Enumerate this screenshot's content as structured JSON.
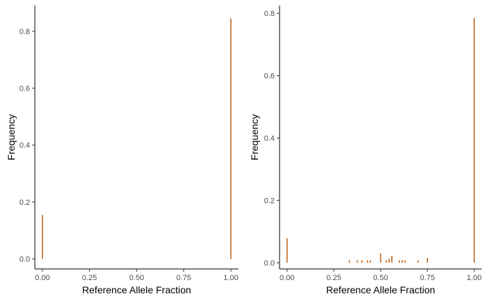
{
  "chart_data": [
    {
      "type": "bar",
      "xlabel": "Reference Allele Fraction",
      "ylabel": "Frequency",
      "xlim": [
        -0.04,
        1.04
      ],
      "ylim": [
        -0.035,
        0.89
      ],
      "x_ticks": [
        0.0,
        0.25,
        0.5,
        0.75,
        1.0
      ],
      "x_tick_labels": [
        "0.00",
        "0.25",
        "0.50",
        "0.75",
        "1.00"
      ],
      "y_ticks": [
        0.0,
        0.2,
        0.4,
        0.6,
        0.8
      ],
      "y_tick_labels": [
        "0.0",
        "0.2",
        "0.4",
        "0.6",
        "0.8"
      ],
      "bar_color": "#c0671f",
      "grid": false,
      "bars": [
        {
          "x": 0.0,
          "y": 0.155
        },
        {
          "x": 1.0,
          "y": 0.845
        }
      ]
    },
    {
      "type": "bar",
      "xlabel": "Reference Allele Fraction",
      "ylabel": "Frequency",
      "xlim": [
        -0.04,
        1.04
      ],
      "ylim": [
        -0.02,
        0.825
      ],
      "x_ticks": [
        0.0,
        0.25,
        0.5,
        0.75,
        1.0
      ],
      "x_tick_labels": [
        "0.00",
        "0.25",
        "0.50",
        "0.75",
        "1.00"
      ],
      "y_ticks": [
        0.0,
        0.2,
        0.4,
        0.6,
        0.8
      ],
      "y_tick_labels": [
        "0.0",
        "0.2",
        "0.4",
        "0.6",
        "0.8"
      ],
      "bar_color": "#c0671f",
      "grid": false,
      "bars": [
        {
          "x": 0.0,
          "y": 0.078
        },
        {
          "x": 0.333,
          "y": 0.008
        },
        {
          "x": 0.375,
          "y": 0.008
        },
        {
          "x": 0.4,
          "y": 0.008
        },
        {
          "x": 0.43,
          "y": 0.008
        },
        {
          "x": 0.445,
          "y": 0.008
        },
        {
          "x": 0.5,
          "y": 0.03
        },
        {
          "x": 0.53,
          "y": 0.008
        },
        {
          "x": 0.545,
          "y": 0.012
        },
        {
          "x": 0.56,
          "y": 0.022
        },
        {
          "x": 0.6,
          "y": 0.008
        },
        {
          "x": 0.615,
          "y": 0.008
        },
        {
          "x": 0.63,
          "y": 0.008
        },
        {
          "x": 0.7,
          "y": 0.008
        },
        {
          "x": 0.75,
          "y": 0.015
        },
        {
          "x": 1.0,
          "y": 0.785
        }
      ]
    }
  ]
}
